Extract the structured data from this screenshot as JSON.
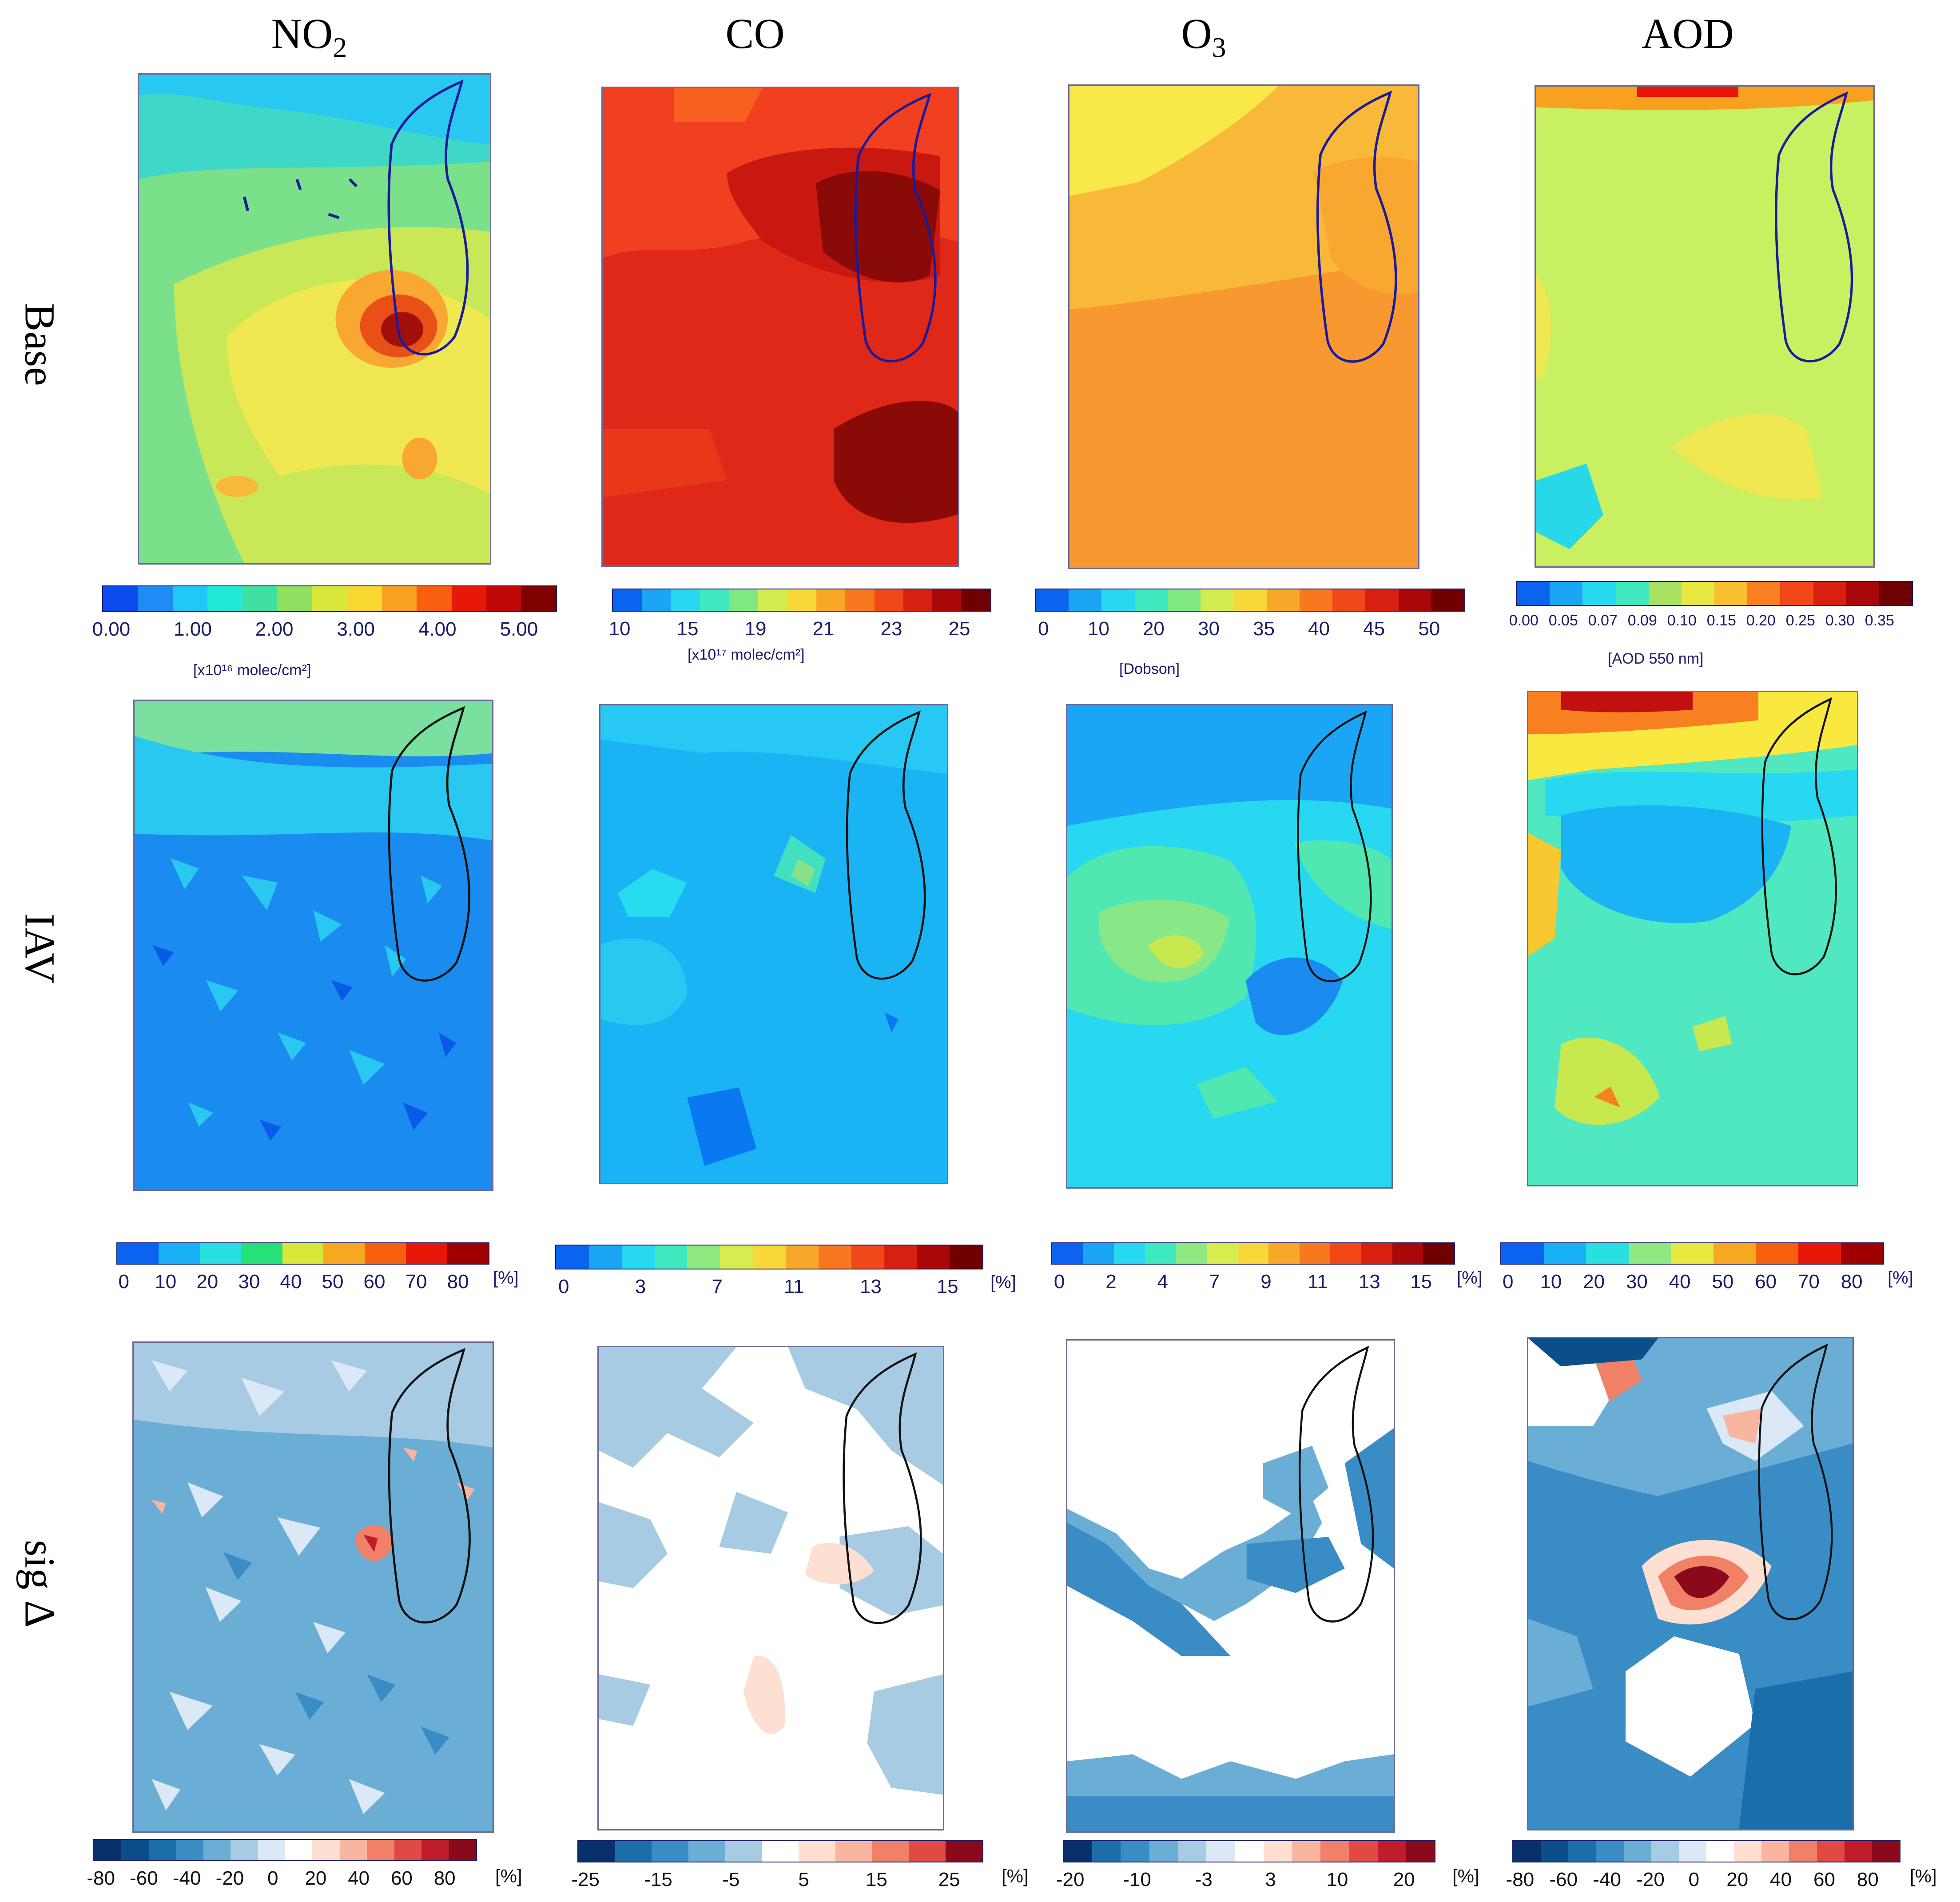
{
  "columns": {
    "no2": {
      "prefix": "NO",
      "sub": "2"
    },
    "co": {
      "label": "CO"
    },
    "o3": {
      "prefix": "O",
      "sub": "3"
    },
    "aod": {
      "label": "AOD"
    }
  },
  "rows": {
    "base": "Base",
    "iav": "IAV",
    "sig": "sig Δ"
  },
  "colorbars": {
    "base": {
      "no2": {
        "ticks": [
          "0.00",
          "1.00",
          "2.00",
          "3.00",
          "4.00",
          "5.00"
        ],
        "unit": "[x10¹⁶ molec/cm²]",
        "colors": [
          "#0a4cf0",
          "#1f8cf5",
          "#1fc8f5",
          "#22e8d8",
          "#3fe0a0",
          "#8fe060",
          "#d8e83a",
          "#f8d830",
          "#f8a020",
          "#f86010",
          "#e81808",
          "#c00808",
          "#800000"
        ]
      },
      "co": {
        "ticks": [
          "10",
          "15",
          "19",
          "21",
          "23",
          "25"
        ],
        "unit": "[x10¹⁷ molec/cm²]",
        "colors": [
          "#0a64f0",
          "#1aa6f5",
          "#28d8f0",
          "#40e8c0",
          "#80e880",
          "#d0ec50",
          "#f8d838",
          "#f8a828",
          "#f87820",
          "#f04818",
          "#d82010",
          "#a80808",
          "#700000"
        ]
      },
      "o3": {
        "ticks": [
          "0",
          "10",
          "20",
          "30",
          "35",
          "40",
          "45",
          "50"
        ],
        "unit": "[Dobson]",
        "colors": [
          "#0a64f0",
          "#1aa6f5",
          "#28d8f0",
          "#40e8c0",
          "#80e880",
          "#d0ec50",
          "#f8d838",
          "#f8a828",
          "#f87820",
          "#f04818",
          "#d82010",
          "#a80808",
          "#700000"
        ]
      },
      "aod": {
        "ticks": [
          "0.00",
          "0.05",
          "0.07",
          "0.09",
          "0.10",
          "0.15",
          "0.20",
          "0.25",
          "0.30",
          "0.35"
        ],
        "unit": "[AOD 550 nm]",
        "colors": [
          "#0a64f0",
          "#1aa6f5",
          "#28d8f0",
          "#40e8c0",
          "#a8e060",
          "#e8e840",
          "#f8c030",
          "#f88020",
          "#f04818",
          "#d82010",
          "#a80808",
          "#700000"
        ]
      }
    },
    "iav": {
      "no2": {
        "ticks": [
          "0",
          "10",
          "20",
          "30",
          "40",
          "50",
          "60",
          "70",
          "80"
        ],
        "unit": "[%]",
        "colors": [
          "#0a64f0",
          "#1ab0f5",
          "#28e0e0",
          "#28e078",
          "#d8e838",
          "#f8a820",
          "#f86010",
          "#e81808",
          "#a00000"
        ]
      },
      "co": {
        "ticks": [
          "0",
          "3",
          "7",
          "11",
          "13",
          "15"
        ],
        "unit": "[%]",
        "colors": [
          "#0a64f0",
          "#1aa6f5",
          "#28d8f0",
          "#40e8c0",
          "#90e880",
          "#d8ec50",
          "#f8d838",
          "#f8a828",
          "#f87820",
          "#f04818",
          "#d82010",
          "#a80808",
          "#700000"
        ]
      },
      "o3": {
        "ticks": [
          "0",
          "2",
          "4",
          "7",
          "9",
          "11",
          "13",
          "15"
        ],
        "unit": "[%]",
        "colors": [
          "#0a64f0",
          "#1aa6f5",
          "#28d8f0",
          "#40e8c0",
          "#90e880",
          "#d8ec50",
          "#f8d838",
          "#f8a828",
          "#f87820",
          "#f04818",
          "#d82010",
          "#a80808",
          "#700000"
        ]
      },
      "aod": {
        "ticks": [
          "0",
          "10",
          "20",
          "30",
          "40",
          "50",
          "60",
          "70",
          "80"
        ],
        "unit": "[%]",
        "colors": [
          "#0a64f0",
          "#1ab0f5",
          "#28e0e0",
          "#90e880",
          "#e8e840",
          "#f8a820",
          "#f86010",
          "#e81808",
          "#a00000"
        ]
      }
    },
    "sig": {
      "no2": {
        "ticks": [
          "-80",
          "-60",
          "-40",
          "-20",
          "0",
          "20",
          "40",
          "60",
          "80"
        ],
        "unit": "[%]",
        "colors": [
          "#08306b",
          "#0b4f8a",
          "#1a6fab",
          "#3a8cc4",
          "#6aaed6",
          "#a6cbe3",
          "#dbe9f6",
          "#ffffff",
          "#fde0d2",
          "#f8b6a0",
          "#f08066",
          "#e04a44",
          "#c01c2c",
          "#8a0a1c"
        ]
      },
      "co": {
        "ticks": [
          "-25",
          "-15",
          "-5",
          "5",
          "15",
          "25"
        ],
        "unit": "[%]",
        "colors": [
          "#08306b",
          "#1a6fab",
          "#3a8cc4",
          "#6aaed6",
          "#a6cbe3",
          "#ffffff",
          "#fde0d2",
          "#f8b6a0",
          "#f08066",
          "#e04a44",
          "#8a0a1c"
        ]
      },
      "o3": {
        "ticks": [
          "-20",
          "-10",
          "-3",
          "3",
          "10",
          "20"
        ],
        "unit": "[%]",
        "colors": [
          "#08306b",
          "#1a6fab",
          "#3a8cc4",
          "#6aaed6",
          "#a6cbe3",
          "#dbe9f6",
          "#ffffff",
          "#fde0d2",
          "#f8b6a0",
          "#f08066",
          "#e04a44",
          "#c01c2c",
          "#8a0a1c"
        ]
      },
      "aod": {
        "ticks": [
          "-80",
          "-60",
          "-40",
          "-20",
          "0",
          "20",
          "40",
          "60",
          "80"
        ],
        "unit": "[%]",
        "colors": [
          "#08306b",
          "#0b4f8a",
          "#1a6fab",
          "#3a8cc4",
          "#6aaed6",
          "#a6cbe3",
          "#dbe9f6",
          "#ffffff",
          "#fde0d2",
          "#f8b6a0",
          "#f08066",
          "#e04a44",
          "#c01c2c",
          "#8a0a1c"
        ]
      }
    }
  }
}
